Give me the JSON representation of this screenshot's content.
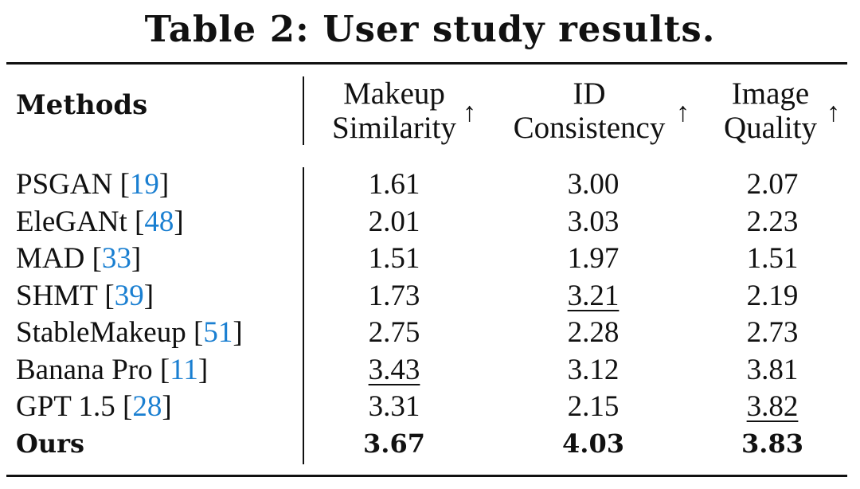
{
  "caption": "Table 2: User study results.",
  "header": {
    "methods": "Methods",
    "col1": [
      "Makeup",
      "Similarity"
    ],
    "col2": [
      "ID",
      "Consistency"
    ],
    "col3": [
      "Image",
      "Quality"
    ],
    "arrow": "↑"
  },
  "rows": [
    {
      "name": "PSGAN",
      "ref": "19",
      "makeup": "1.61",
      "id": "3.00",
      "quality": "2.07"
    },
    {
      "name": "EleGANt",
      "ref": "48",
      "makeup": "2.01",
      "id": "3.03",
      "quality": "2.23"
    },
    {
      "name": "MAD",
      "ref": "33",
      "makeup": "1.51",
      "id": "1.97",
      "quality": "1.51"
    },
    {
      "name": "SHMT",
      "ref": "39",
      "makeup": "1.73",
      "id": "3.21",
      "quality": "2.19"
    },
    {
      "name": "StableMakeup",
      "ref": "51",
      "makeup": "2.75",
      "id": "2.28",
      "quality": "2.73"
    },
    {
      "name": "Banana Pro",
      "ref": "11",
      "makeup": "3.43",
      "id": "3.12",
      "quality": "3.81"
    },
    {
      "name": "GPT 1.5",
      "ref": "28",
      "makeup": "3.31",
      "id": "2.15",
      "quality": "3.82"
    },
    {
      "name": "Ours",
      "makeup": "3.67",
      "id": "4.03",
      "quality": "3.83"
    }
  ],
  "colors": {
    "citation": "#1a7fd1",
    "text": "#111111"
  }
}
